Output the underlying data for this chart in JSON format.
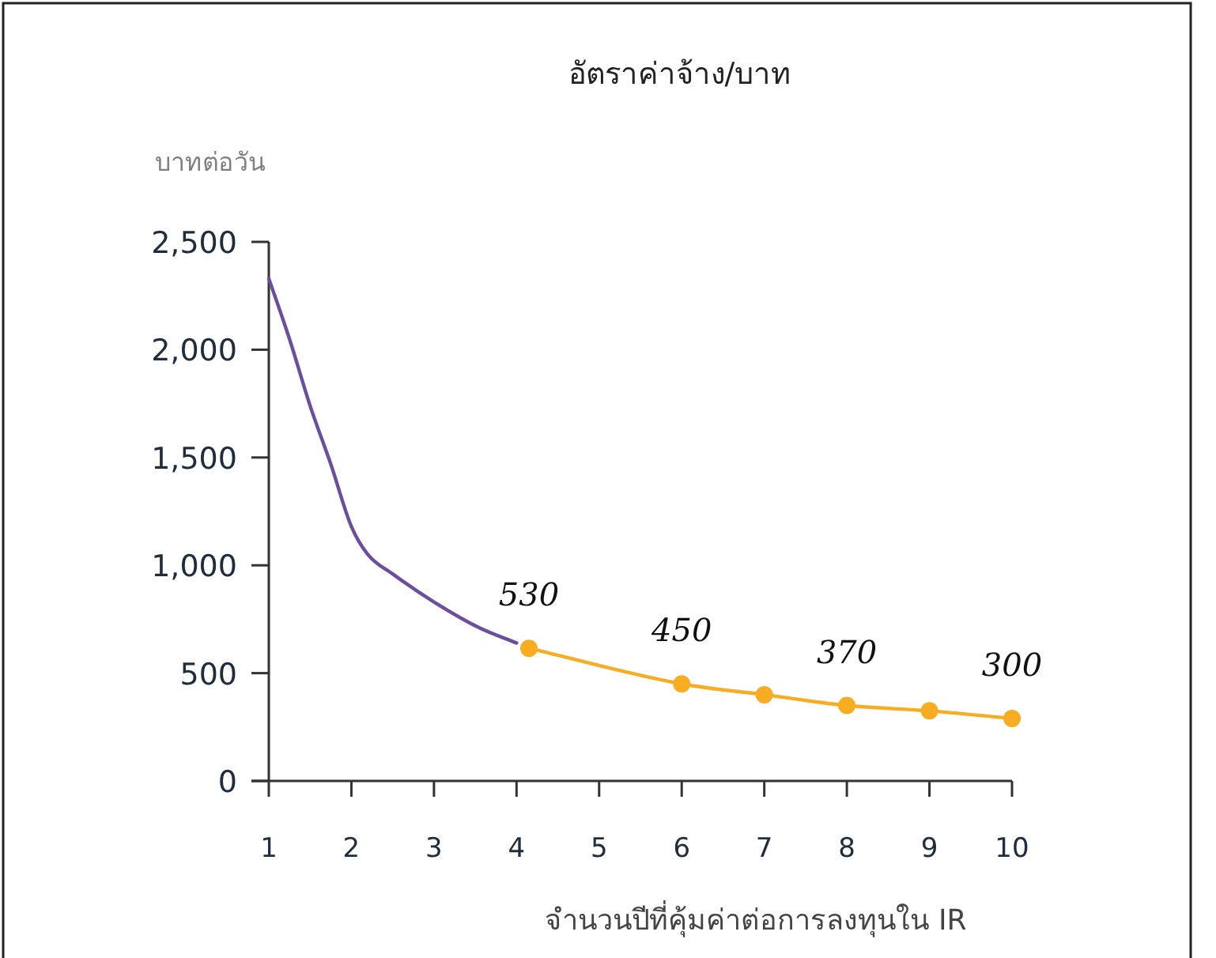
{
  "chart_data": {
    "type": "line",
    "title": "อัตราค่าจ้าง/บาท",
    "ylabel": "บาทต่อวัน",
    "xlabel": "จำนวนปีที่คุ้มค่าต่อการลงทุนใน IR",
    "xlim": [
      1,
      10
    ],
    "xticks": [
      1,
      2,
      3,
      4,
      5,
      6,
      7,
      8,
      9,
      10
    ],
    "ylim": [
      0,
      2500
    ],
    "yticks": [
      0,
      500,
      {
        "value": 1000,
        "label": "1,000"
      },
      {
        "value": 1500,
        "label": "1,500"
      },
      {
        "value": 2000,
        "label": "2,000"
      },
      {
        "value": 2500,
        "label": "2,500"
      }
    ],
    "series": [
      {
        "color": "#6b4f9e",
        "marker": "none",
        "x": [
          1,
          1.25,
          1.5,
          1.75,
          2,
          2.2,
          2.5,
          3,
          3.55,
          4
        ],
        "values": [
          2330,
          2050,
          1740,
          1470,
          1180,
          1050,
          960,
          830,
          710,
          640
        ]
      },
      {
        "color": "#f7ac22",
        "marker": "circle",
        "x": [
          4.15,
          6,
          7,
          8,
          9,
          10
        ],
        "values": [
          615,
          450,
          400,
          350,
          325,
          290
        ]
      }
    ],
    "annotations": [
      {
        "text": "530",
        "x": 4.15,
        "y": 615
      },
      {
        "text": "450",
        "x": 6,
        "y": 450
      },
      {
        "text": "370",
        "x": 8,
        "y": 350
      },
      {
        "text": "300",
        "x": 10,
        "y": 290
      }
    ]
  }
}
